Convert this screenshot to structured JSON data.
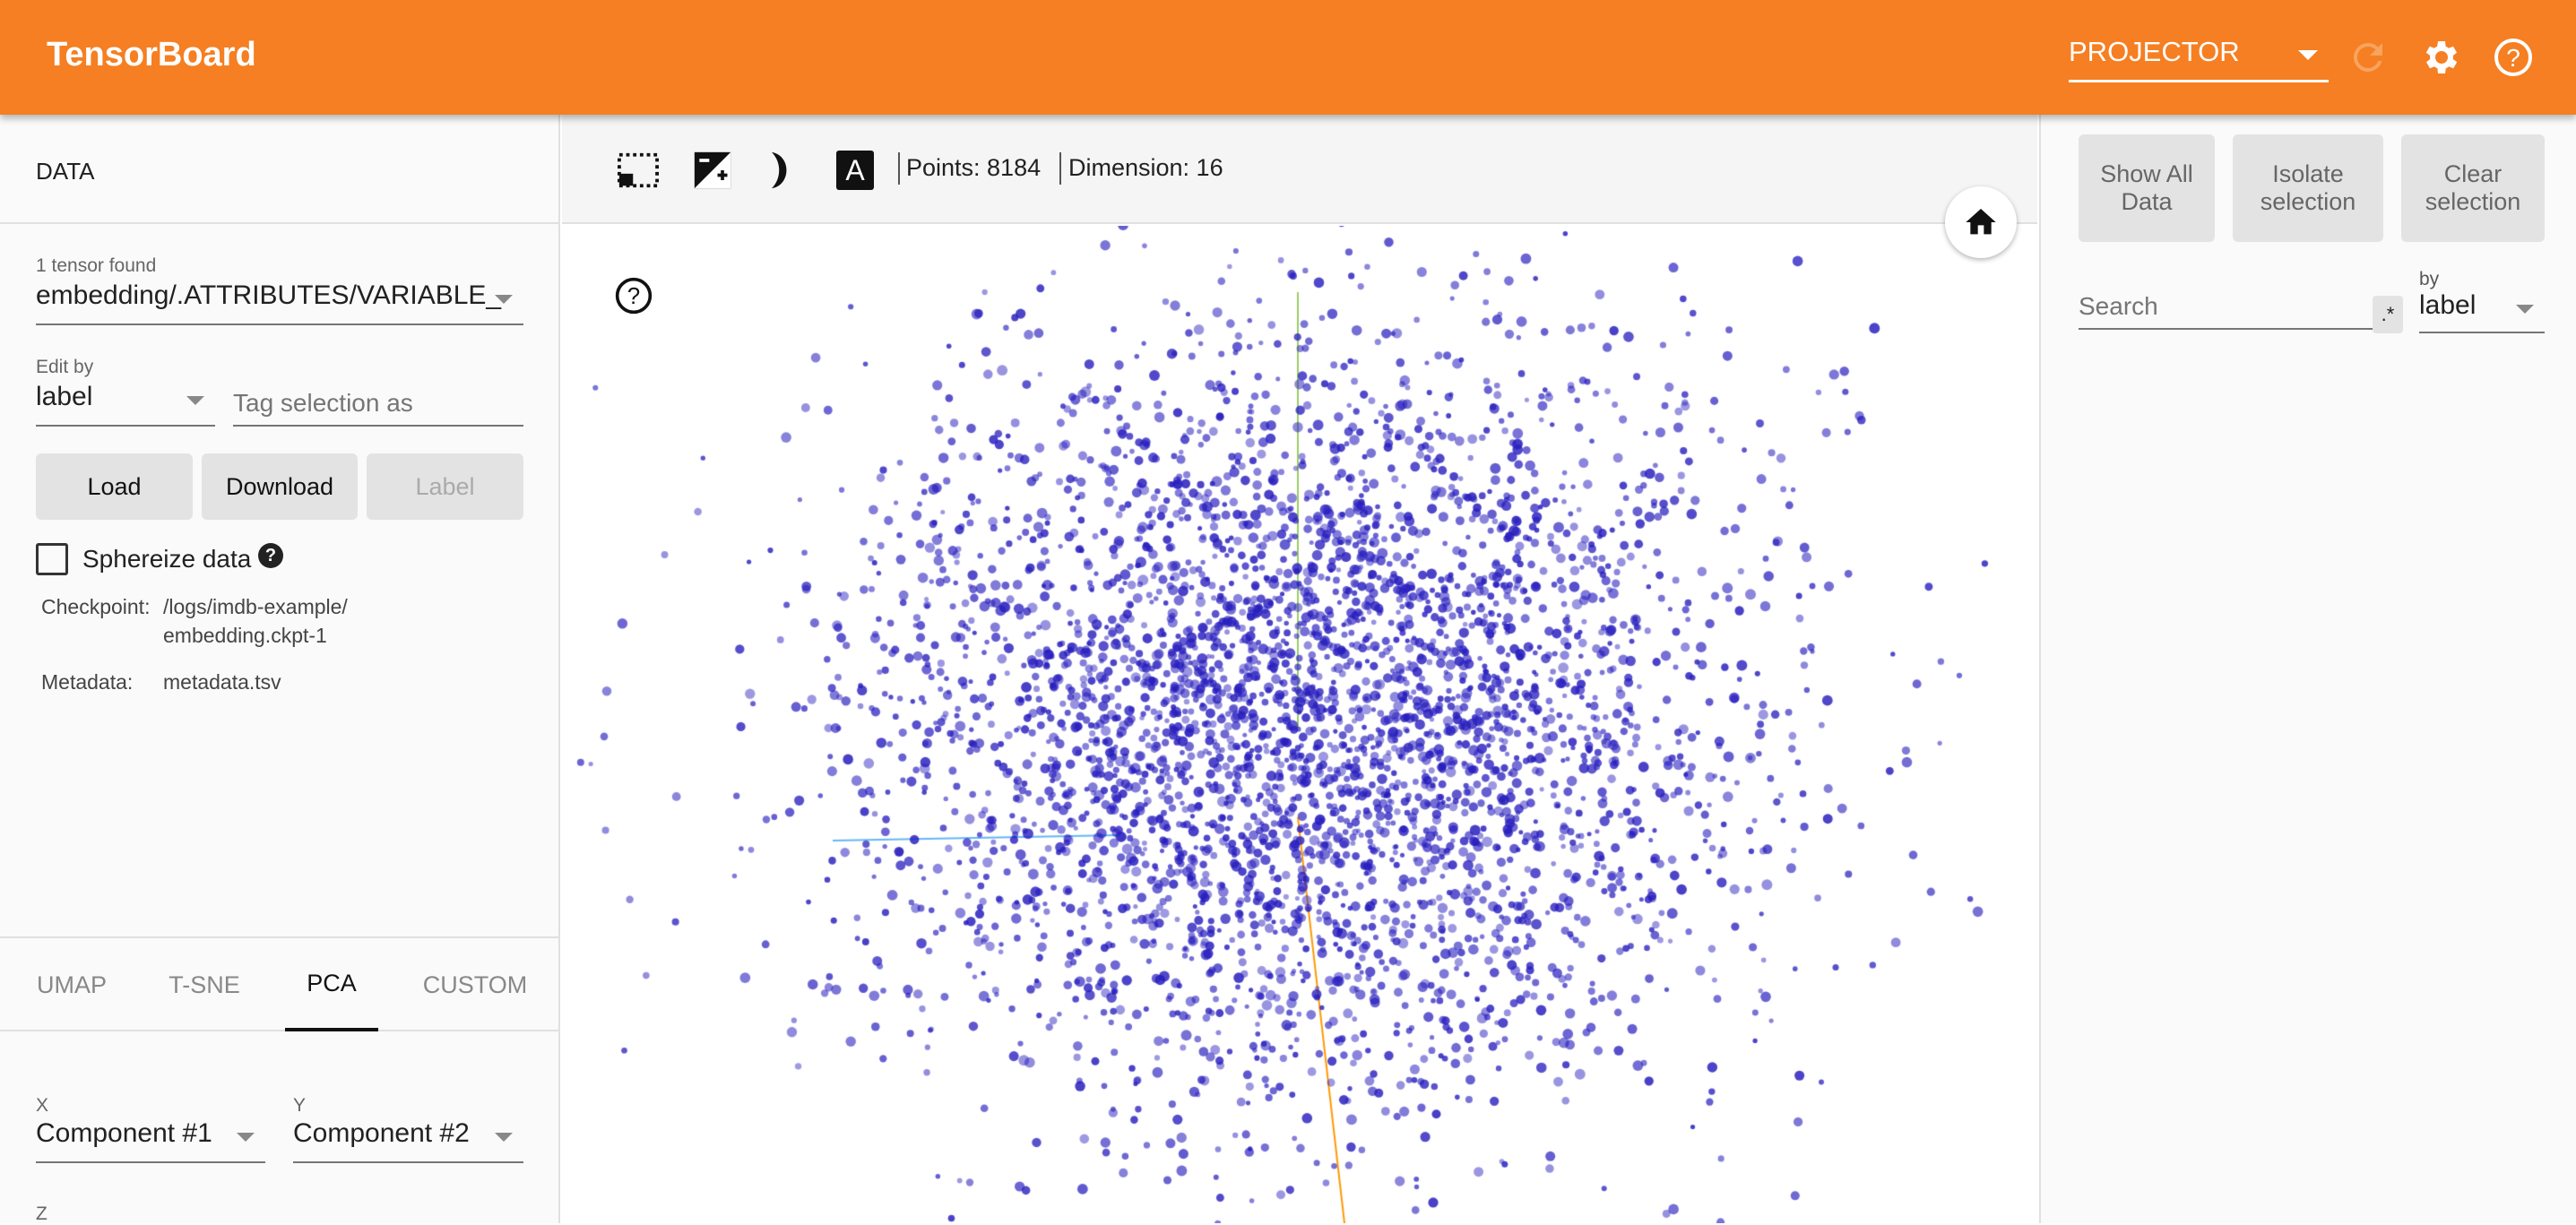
{
  "header": {
    "title": "TensorBoard",
    "plugin_select": "PROJECTOR",
    "icons": [
      "refresh-icon",
      "settings-icon",
      "help-icon"
    ],
    "color": "#f57f22"
  },
  "left": {
    "section_title": "DATA",
    "tensor_count": "1 tensor found",
    "tensor_select": "embedding/.ATTRIBUTES/VARIABLE_",
    "edit_by_label": "Edit by",
    "edit_by_value": "label",
    "tag_placeholder": "Tag selection as",
    "buttons": {
      "load": "Load",
      "download": "Download",
      "label": "Label"
    },
    "sphereize": {
      "label": "Sphereize data",
      "checked": false
    },
    "checkpoint_label": "Checkpoint:",
    "checkpoint_value_1": "/logs/imdb-example/",
    "checkpoint_value_2": "embedding.ckpt-1",
    "metadata_label": "Metadata:",
    "metadata_value": "metadata.tsv",
    "tabs": [
      "UMAP",
      "T-SNE",
      "PCA",
      "CUSTOM"
    ],
    "active_tab": "PCA",
    "pca": {
      "x_label": "X",
      "x_value": "Component #1",
      "y_label": "Y",
      "y_value": "Component #2",
      "z_label": "Z"
    }
  },
  "toolbar": {
    "points": "Points: 8184",
    "dimension": "Dimension: 16",
    "icons": [
      "select-box-icon",
      "night-mode-icon",
      "moon-icon",
      "label-toggle-icon"
    ]
  },
  "viz": {
    "point_color": "#3b36c9",
    "axis_colors": {
      "x": "#64b5f6",
      "y": "#9ccc65",
      "z": "#ff9800"
    }
  },
  "right": {
    "buttons": {
      "show_all_1": "Show All",
      "show_all_2": "Data",
      "isolate_1": "Isolate",
      "isolate_2": "selection",
      "clear_1": "Clear",
      "clear_2": "selection"
    },
    "search_placeholder": "Search",
    "regex_toggle": ".*",
    "by_label": "by",
    "by_value": "label"
  }
}
